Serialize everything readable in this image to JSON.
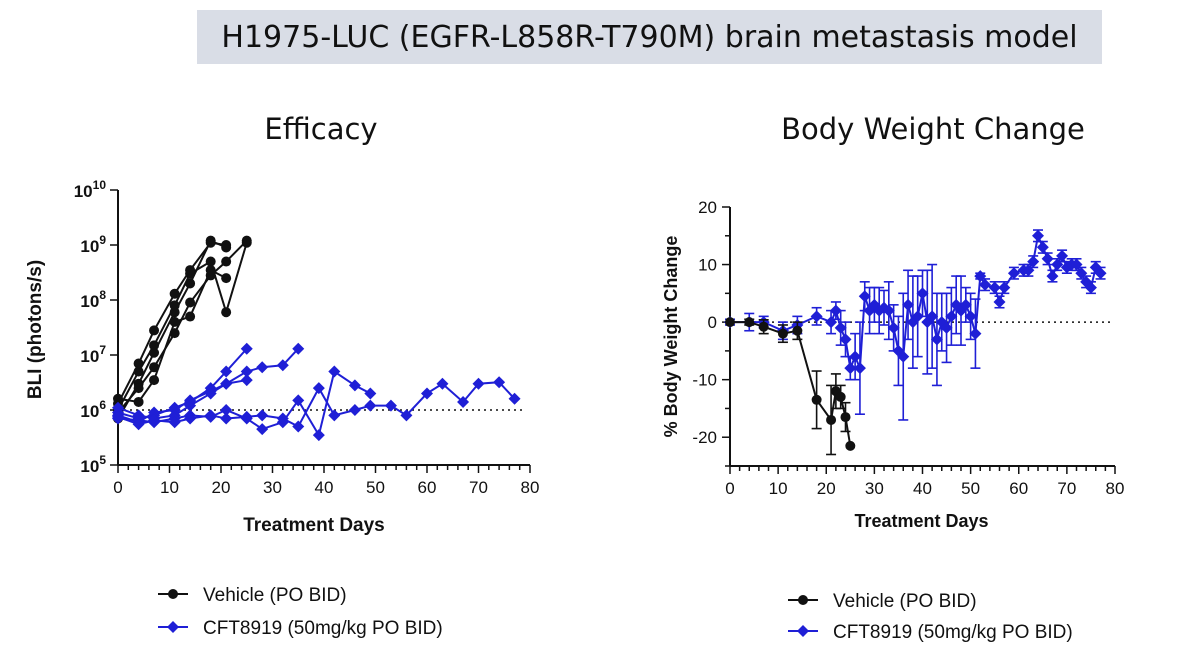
{
  "header": {
    "title": "H1975-LUC (EGFR-L858R-T790M) brain metastasis model"
  },
  "colors": {
    "vehicle": "#111111",
    "treatment": "#1f1fd6",
    "banner": "#d9dde6"
  },
  "chart_data": [
    {
      "type": "line",
      "title": "Efficacy",
      "xlabel": "Treatment Days",
      "ylabel": "BLI (photons/s)",
      "yscale": "log",
      "xlim": [
        0,
        80
      ],
      "ylim": [
        100000,
        10000000000
      ],
      "xticks": [
        "0",
        "10",
        "20",
        "30",
        "40",
        "50",
        "60",
        "70",
        "80"
      ],
      "yticks": [
        {
          "base": "10",
          "exp": "5"
        },
        {
          "base": "10",
          "exp": "6"
        },
        {
          "base": "10",
          "exp": "7"
        },
        {
          "base": "10",
          "exp": "8"
        },
        {
          "base": "10",
          "exp": "9"
        },
        {
          "base": "10",
          "exp": "10"
        }
      ],
      "reference_line": 1000000,
      "series": [
        {
          "name": "Vehicle (PO BID)",
          "group": "vehicle",
          "marker": "circle",
          "points": [
            [
              0,
              700000
            ],
            [
              4,
              3000000
            ],
            [
              7,
              11000000
            ],
            [
              11,
              60000000
            ],
            [
              14,
              200000000
            ],
            [
              18,
              1200000000
            ],
            [
              21,
              900000000
            ]
          ]
        },
        {
          "name": "Vehicle (PO BID)",
          "group": "vehicle",
          "marker": "circle",
          "points": [
            [
              0,
              1000000
            ],
            [
              4,
              5000000
            ],
            [
              7,
              15000000
            ],
            [
              11,
              80000000
            ],
            [
              14,
              300000000
            ],
            [
              18,
              500000000
            ],
            [
              21,
              60000000
            ],
            [
              25,
              1100000000
            ]
          ]
        },
        {
          "name": "Vehicle (PO BID)",
          "group": "vehicle",
          "marker": "circle",
          "points": [
            [
              0,
              1300000
            ],
            [
              4,
              7000000
            ],
            [
              7,
              28000000
            ],
            [
              11,
              130000000
            ],
            [
              14,
              350000000
            ],
            [
              18,
              1100000000
            ],
            [
              21,
              1000000000
            ]
          ]
        },
        {
          "name": "Vehicle (PO BID)",
          "group": "vehicle",
          "marker": "circle",
          "points": [
            [
              0,
              900000
            ],
            [
              4,
              2500000
            ],
            [
              7,
              6000000
            ],
            [
              11,
              25000000
            ],
            [
              14,
              90000000
            ],
            [
              18,
              280000000
            ],
            [
              21,
              500000000
            ],
            [
              25,
              1200000000
            ]
          ]
        },
        {
          "name": "Vehicle (PO BID)",
          "group": "vehicle",
          "marker": "circle",
          "points": [
            [
              0,
              1600000
            ],
            [
              4,
              1400000
            ],
            [
              7,
              3500000
            ],
            [
              11,
              40000000
            ],
            [
              14,
              50000000
            ],
            [
              18,
              350000000
            ],
            [
              21,
              250000000
            ]
          ]
        },
        {
          "name": "CFT8919 (50mg/kg PO BID)",
          "group": "treatment",
          "marker": "diamond",
          "points": [
            [
              0,
              900000
            ],
            [
              4,
              700000
            ],
            [
              7,
              800000
            ],
            [
              11,
              1100000
            ],
            [
              14,
              1400000
            ],
            [
              18,
              2500000
            ],
            [
              21,
              5000000
            ],
            [
              25,
              13000000
            ]
          ]
        },
        {
          "name": "CFT8919 (50mg/kg PO BID)",
          "group": "treatment",
          "marker": "diamond",
          "points": [
            [
              0,
              800000
            ],
            [
              4,
              600000
            ],
            [
              7,
              900000
            ],
            [
              11,
              1000000
            ],
            [
              14,
              1500000
            ],
            [
              18,
              2200000
            ],
            [
              21,
              3000000
            ],
            [
              25,
              5000000
            ],
            [
              28,
              6000000
            ],
            [
              32,
              6500000
            ],
            [
              35,
              13000000
            ]
          ]
        },
        {
          "name": "CFT8919 (50mg/kg PO BID)",
          "group": "treatment",
          "marker": "diamond",
          "points": [
            [
              0,
              1100000
            ],
            [
              4,
              800000
            ],
            [
              7,
              700000
            ],
            [
              11,
              800000
            ],
            [
              14,
              1200000
            ],
            [
              18,
              2000000
            ],
            [
              21,
              3000000
            ],
            [
              25,
              3500000
            ]
          ]
        },
        {
          "name": "CFT8919 (50mg/kg PO BID)",
          "group": "treatment",
          "marker": "diamond",
          "points": [
            [
              0,
              700000
            ],
            [
              4,
              650000
            ],
            [
              7,
              600000
            ],
            [
              11,
              700000
            ],
            [
              14,
              800000
            ],
            [
              18,
              750000
            ],
            [
              21,
              1000000
            ],
            [
              25,
              700000
            ],
            [
              28,
              450000
            ],
            [
              32,
              600000
            ],
            [
              35,
              1500000
            ],
            [
              39,
              350000
            ],
            [
              42,
              5000000
            ],
            [
              46,
              2800000
            ],
            [
              49,
              2000000
            ]
          ]
        },
        {
          "name": "CFT8919 (50mg/kg PO BID)",
          "group": "treatment",
          "marker": "diamond",
          "points": [
            [
              0,
              750000
            ],
            [
              4,
              550000
            ],
            [
              7,
              650000
            ],
            [
              11,
              600000
            ],
            [
              14,
              700000
            ],
            [
              18,
              800000
            ],
            [
              21,
              700000
            ],
            [
              25,
              750000
            ],
            [
              28,
              800000
            ],
            [
              32,
              700000
            ],
            [
              35,
              500000
            ],
            [
              39,
              2500000
            ],
            [
              42,
              800000
            ],
            [
              46,
              1000000
            ],
            [
              49,
              1200000
            ],
            [
              53,
              1200000
            ],
            [
              56,
              800000
            ],
            [
              60,
              2000000
            ],
            [
              63,
              3000000
            ],
            [
              67,
              1400000
            ],
            [
              70,
              3000000
            ],
            [
              74,
              3200000
            ],
            [
              77,
              1600000
            ]
          ]
        }
      ]
    },
    {
      "type": "line",
      "title": "Body Weight Change",
      "xlabel": "Treatment Days",
      "ylabel": "% Body Weight Change",
      "xlim": [
        0,
        80
      ],
      "ylim": [
        -25,
        20
      ],
      "xticks": [
        "0",
        "10",
        "20",
        "30",
        "40",
        "50",
        "60",
        "70",
        "80"
      ],
      "yticks": [
        "-20",
        "-10",
        "0",
        "10",
        "20"
      ],
      "reference_line": 0,
      "series": [
        {
          "name": "Vehicle (PO BID)",
          "group": "vehicle",
          "marker": "circle",
          "points": [
            [
              0,
              0,
              0
            ],
            [
              4,
              0,
              0.5
            ],
            [
              7,
              -0.8,
              1.2
            ],
            [
              11,
              -2,
              1.5
            ],
            [
              14,
              -1.5,
              1.5
            ],
            [
              18,
              -13.5,
              5
            ],
            [
              21,
              -17,
              6
            ],
            [
              22,
              -12,
              3
            ],
            [
              23,
              -13,
              2
            ],
            [
              24,
              -16.5,
              2.5
            ],
            [
              25,
              -21.5,
              0
            ]
          ]
        },
        {
          "name": "CFT8919 (50mg/kg PO BID)",
          "group": "treatment",
          "marker": "diamond",
          "points": [
            [
              0,
              0,
              0.5
            ],
            [
              4,
              0,
              1.5
            ],
            [
              7,
              0,
              1
            ],
            [
              11,
              -1.5,
              1.5
            ],
            [
              14,
              -0.5,
              1.5
            ],
            [
              18,
              1,
              1.5
            ],
            [
              21,
              0,
              2
            ],
            [
              22,
              2,
              1.5
            ],
            [
              23,
              -1,
              3
            ],
            [
              24,
              -3,
              3
            ],
            [
              25,
              -8,
              2
            ],
            [
              26,
              -6,
              4
            ],
            [
              27,
              -8,
              8
            ],
            [
              28,
              4.5,
              2.5
            ],
            [
              29,
              2,
              4
            ],
            [
              30,
              3,
              3
            ],
            [
              31,
              2,
              4
            ],
            [
              32,
              2.5,
              3
            ],
            [
              33,
              2,
              5
            ],
            [
              34,
              -1,
              4
            ],
            [
              35,
              -5,
              6
            ],
            [
              36,
              -6,
              11
            ],
            [
              37,
              3,
              6
            ],
            [
              38,
              0,
              8
            ],
            [
              39,
              1,
              7
            ],
            [
              40,
              5,
              4
            ],
            [
              41,
              0,
              9
            ],
            [
              42,
              1,
              9
            ],
            [
              43,
              -3,
              8
            ],
            [
              44,
              0,
              5
            ],
            [
              45,
              -1,
              6
            ],
            [
              46,
              1,
              5
            ],
            [
              47,
              3,
              5
            ],
            [
              48,
              2,
              6
            ],
            [
              49,
              3,
              3
            ],
            [
              50,
              1,
              4
            ],
            [
              51,
              -2,
              6
            ],
            [
              52,
              8,
              0.5
            ],
            [
              53,
              6.5,
              1
            ],
            [
              55,
              6,
              1
            ],
            [
              56,
              3.5,
              1
            ],
            [
              57,
              6,
              1
            ],
            [
              59,
              8.5,
              1
            ],
            [
              61,
              9,
              1
            ],
            [
              62,
              9,
              1
            ],
            [
              63,
              10.5,
              1
            ],
            [
              64,
              15,
              1
            ],
            [
              65,
              13,
              1
            ],
            [
              66,
              11,
              1
            ],
            [
              67,
              8,
              1
            ],
            [
              68,
              10,
              1
            ],
            [
              69,
              11.5,
              1
            ],
            [
              70,
              9.5,
              1
            ],
            [
              71,
              10,
              1
            ],
            [
              72,
              10,
              1
            ],
            [
              73,
              8.5,
              1
            ],
            [
              74,
              7,
              1
            ],
            [
              75,
              6,
              1
            ],
            [
              76,
              9.5,
              1
            ],
            [
              77,
              8.5,
              1
            ]
          ]
        }
      ]
    }
  ],
  "legends": [
    {
      "vehicle": "Vehicle (PO BID)",
      "treatment": "CFT8919 (50mg/kg PO BID)"
    },
    {
      "vehicle": "Vehicle (PO BID)",
      "treatment": "CFT8919 (50mg/kg PO BID)"
    }
  ]
}
